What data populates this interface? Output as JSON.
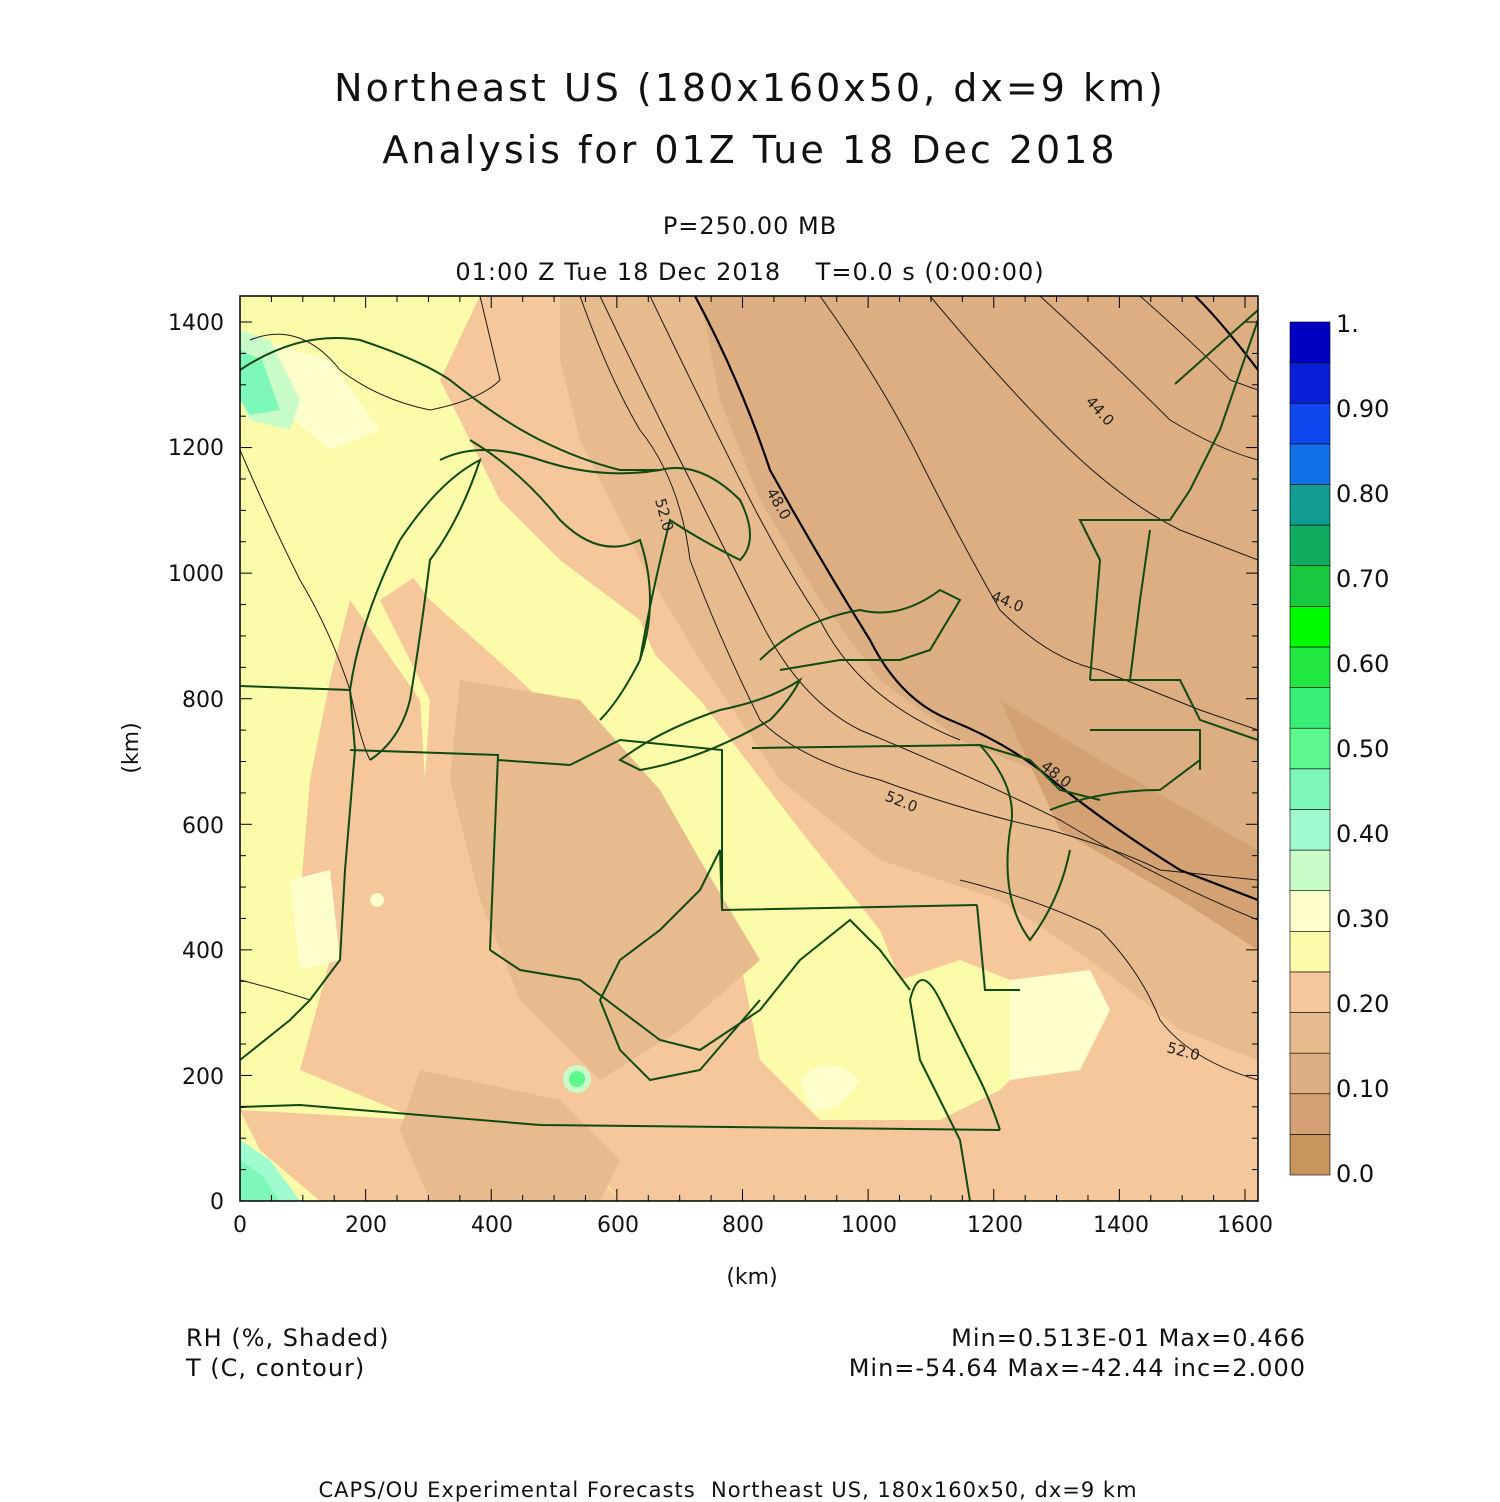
{
  "header": {
    "title_line1": "Northeast US (180x160x50, dx=9 km)",
    "title_line2": "Analysis for 01Z Tue 18 Dec 2018",
    "level": "P=250.00 MB",
    "time": "01:00 Z Tue 18 Dec 2018    T=0.0 s (0:00:00)"
  },
  "axes": {
    "x_label": "(km)",
    "y_label": "(km)",
    "x_ticks": [
      "0",
      "200",
      "400",
      "600",
      "800",
      "1000",
      "1200",
      "1400",
      "1600"
    ],
    "y_ticks": [
      "0",
      "200",
      "400",
      "600",
      "800",
      "1000",
      "1200",
      "1400"
    ]
  },
  "colorbar": {
    "labels": [
      "0.0",
      "0.10",
      "0.20",
      "0.30",
      "0.40",
      "0.50",
      "0.60",
      "0.70",
      "0.80",
      "0.90",
      "1."
    ],
    "colors": [
      "#c9955f",
      "#d4a272",
      "#ddae81",
      "#e8bb8e",
      "#f5c79b",
      "#fbfba9",
      "#fefecd",
      "#c8fcc8",
      "#a0fcd0",
      "#7ef8b8",
      "#5cf88e",
      "#38f078",
      "#20e840",
      "#00fc00",
      "#18c840",
      "#10ac60",
      "#109c90",
      "#1070e8",
      "#1048f0",
      "#0820d8",
      "#0000c0"
    ]
  },
  "colors": {
    "boundary": "#0f4a0f",
    "contour": "#1a1a1a"
  },
  "contour_labels": [
    "44.0",
    "44.0",
    "48.0",
    "48.0",
    "52.0",
    "52.0",
    "52.0"
  ],
  "legend": {
    "field1": "RH (%, Shaded)",
    "field2": "T (C, contour)",
    "stats1": "Min=0.513E-01 Max=0.466",
    "stats2": "Min=-54.64 Max=-42.44 inc=2.000"
  },
  "footer": "CAPS/OU Experimental Forecasts  Northeast US, 180x160x50, dx=9 km"
}
